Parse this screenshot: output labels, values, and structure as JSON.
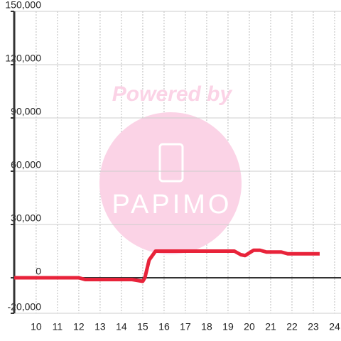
{
  "chart_data": {
    "type": "line",
    "watermark": [
      "Powered by",
      "PAPIMO"
    ],
    "x": [
      8.97,
      12,
      12.3,
      14.5,
      15,
      15.1,
      15.3,
      15.6,
      19.3,
      19.6,
      19.8,
      20.2,
      20.5,
      20.8,
      21.5,
      21.8,
      23.3
    ],
    "series": [
      {
        "color": "#e8233a",
        "values": [
          0,
          0,
          -1000,
          -1000,
          -2000,
          0,
          10000,
          15000,
          15000,
          13000,
          12500,
          15500,
          15500,
          14500,
          14500,
          13500,
          13500
        ]
      }
    ],
    "xlim": [
      8.97,
      24.3
    ],
    "xticks": [
      10,
      11,
      12,
      13,
      14,
      15,
      16,
      17,
      18,
      19,
      20,
      21,
      22,
      23,
      24
    ],
    "ylim": [
      -20000,
      150000
    ],
    "yticks": [
      {
        "value": -20000,
        "label": "-20,000"
      },
      0,
      {
        "value": 30000,
        "label": "30,000"
      },
      {
        "value": 60000,
        "label": "60,000"
      },
      {
        "value": 90000,
        "label": "90,000"
      },
      {
        "value": 120000,
        "label": "120,000"
      },
      {
        "value": 150000,
        "label": "150,000"
      }
    ],
    "grid": true
  }
}
